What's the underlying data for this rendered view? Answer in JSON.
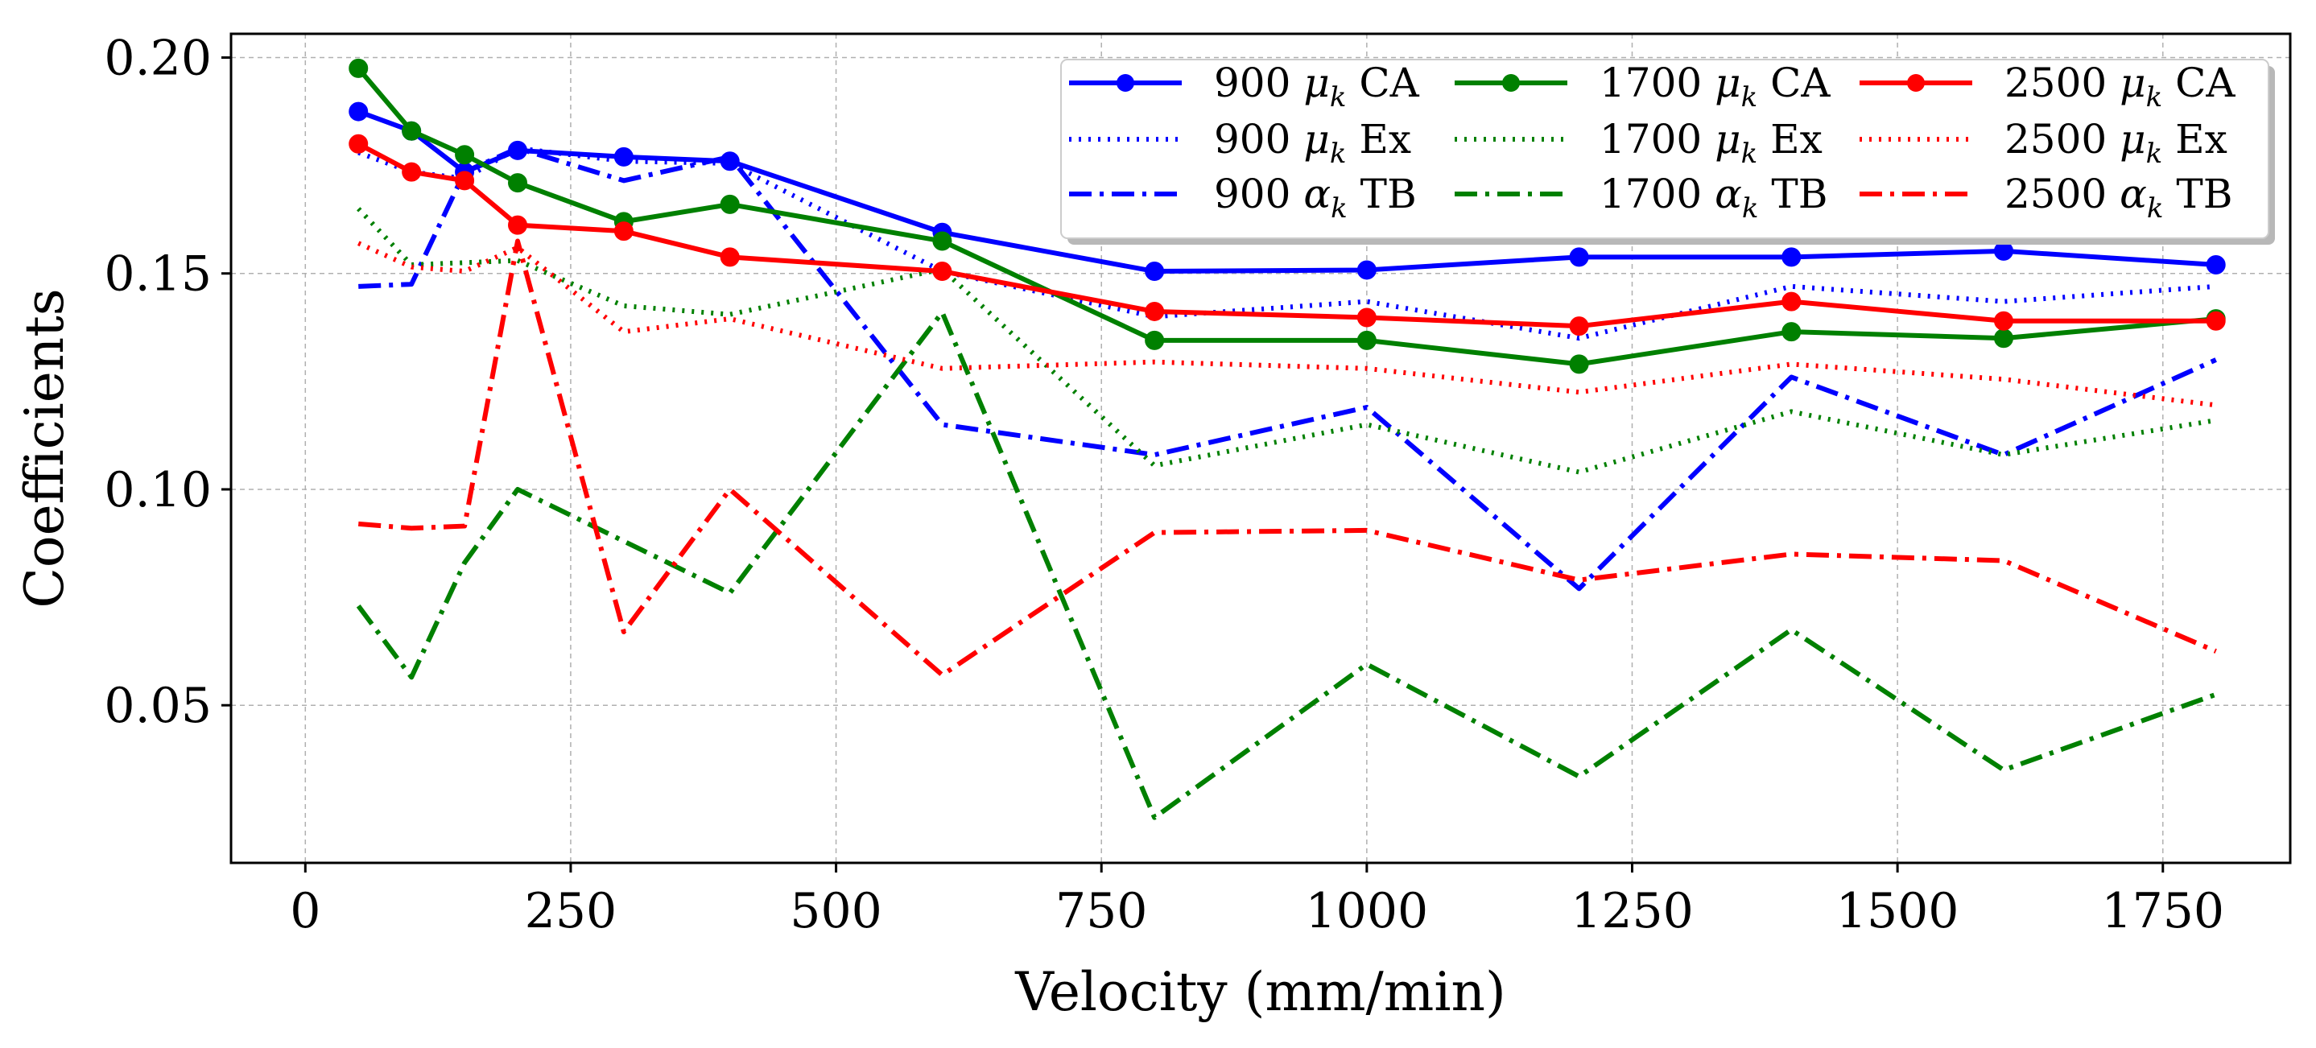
{
  "chart_data": {
    "type": "line",
    "title": "",
    "xlabel": "Velocity (mm/min)",
    "ylabel": "Coefficients",
    "xlim": [
      -70,
      1870
    ],
    "ylim": [
      0.0135,
      0.2055
    ],
    "xticks": [
      0,
      250,
      500,
      750,
      1000,
      1250,
      1500,
      1750
    ],
    "xtick_labels": [
      "0",
      "250",
      "500",
      "750",
      "1000",
      "1250",
      "1500",
      "1750"
    ],
    "yticks": [
      0.05,
      0.1,
      0.15,
      0.2
    ],
    "ytick_labels": [
      "0.05",
      "0.10",
      "0.15",
      "0.20"
    ],
    "grid": true,
    "legend_position": "top-right",
    "x": [
      50,
      100,
      150,
      200,
      300,
      400,
      600,
      800,
      1000,
      1200,
      1400,
      1600,
      1800
    ],
    "series": [
      {
        "name": "900 μk CA",
        "sub": "k",
        "color": "#0000ff",
        "style": "solid",
        "marker": true,
        "values": [
          0.1875,
          0.183,
          0.1735,
          0.1785,
          0.177,
          0.176,
          0.1595,
          0.1505,
          0.1508,
          0.1538,
          0.1538,
          0.1552,
          0.152
        ]
      },
      {
        "name": "900 μk Ex",
        "sub": "k",
        "color": "#0000ff",
        "style": "dotted",
        "marker": false,
        "values": [
          0.178,
          0.1735,
          0.172,
          0.179,
          0.176,
          0.1755,
          0.1505,
          0.14,
          0.1435,
          0.135,
          0.147,
          0.1435,
          0.147
        ]
      },
      {
        "name": "900 αk TB",
        "sub": "k",
        "color": "#0000ff",
        "style": "dashdot",
        "marker": false,
        "values": [
          0.147,
          0.1475,
          0.1735,
          0.179,
          0.1715,
          0.177,
          0.115,
          0.108,
          0.119,
          0.077,
          0.126,
          0.108,
          0.13
        ]
      },
      {
        "name": "1700 μk CA",
        "sub": "k",
        "color": "#008000",
        "style": "solid",
        "marker": true,
        "values": [
          0.1975,
          0.183,
          0.1775,
          0.171,
          0.162,
          0.166,
          0.1575,
          0.1345,
          0.1345,
          0.129,
          0.1365,
          0.135,
          0.1395
        ]
      },
      {
        "name": "1700 μk Ex",
        "sub": "k",
        "color": "#008000",
        "style": "dotted",
        "marker": false,
        "values": [
          0.165,
          0.152,
          0.1525,
          0.153,
          0.1425,
          0.1405,
          0.151,
          0.1055,
          0.115,
          0.104,
          0.118,
          0.108,
          0.116
        ]
      },
      {
        "name": "1700 αk TB",
        "sub": "k",
        "color": "#008000",
        "style": "dashdot",
        "marker": false,
        "values": [
          0.073,
          0.0565,
          0.083,
          0.1,
          0.088,
          0.076,
          0.141,
          0.024,
          0.0595,
          0.0335,
          0.0675,
          0.035,
          0.0525
        ]
      },
      {
        "name": "2500 μk CA",
        "sub": "k",
        "color": "#ff0000",
        "style": "solid",
        "marker": true,
        "values": [
          0.18,
          0.1735,
          0.1715,
          0.1612,
          0.1598,
          0.1538,
          0.1505,
          0.1412,
          0.1398,
          0.1378,
          0.1435,
          0.139,
          0.139
        ]
      },
      {
        "name": "2500 μk Ex",
        "sub": "k",
        "color": "#ff0000",
        "style": "dotted",
        "marker": false,
        "values": [
          0.157,
          0.1515,
          0.1505,
          0.156,
          0.1365,
          0.1395,
          0.128,
          0.1295,
          0.128,
          0.1225,
          0.129,
          0.1255,
          0.1195
        ]
      },
      {
        "name": "2500 αk TB",
        "sub": "k",
        "color": "#ff0000",
        "style": "dashdot",
        "marker": false,
        "values": [
          0.092,
          0.091,
          0.0915,
          0.1575,
          0.067,
          0.1,
          0.057,
          0.09,
          0.0905,
          0.079,
          0.085,
          0.0835,
          0.0625
        ]
      }
    ],
    "legend": {
      "columns": [
        [
          {
            "num": "900",
            "sym": "μ",
            "sub": "k",
            "suffix": "CA"
          },
          {
            "num": "900",
            "sym": "μ",
            "sub": "k",
            "suffix": "Ex"
          },
          {
            "num": "900",
            "sym": "α",
            "sub": "k",
            "suffix": "TB"
          }
        ],
        [
          {
            "num": "1700",
            "sym": "μ",
            "sub": "k",
            "suffix": "CA"
          },
          {
            "num": "1700",
            "sym": "μ",
            "sub": "k",
            "suffix": "Ex"
          },
          {
            "num": "1700",
            "sym": "α",
            "sub": "k",
            "suffix": "TB"
          }
        ],
        [
          {
            "num": "2500",
            "sym": "μ",
            "sub": "k",
            "suffix": "CA"
          },
          {
            "num": "2500",
            "sym": "μ",
            "sub": "k",
            "suffix": "Ex"
          },
          {
            "num": "2500",
            "sym": "α",
            "sub": "k",
            "suffix": "TB"
          }
        ]
      ]
    }
  }
}
